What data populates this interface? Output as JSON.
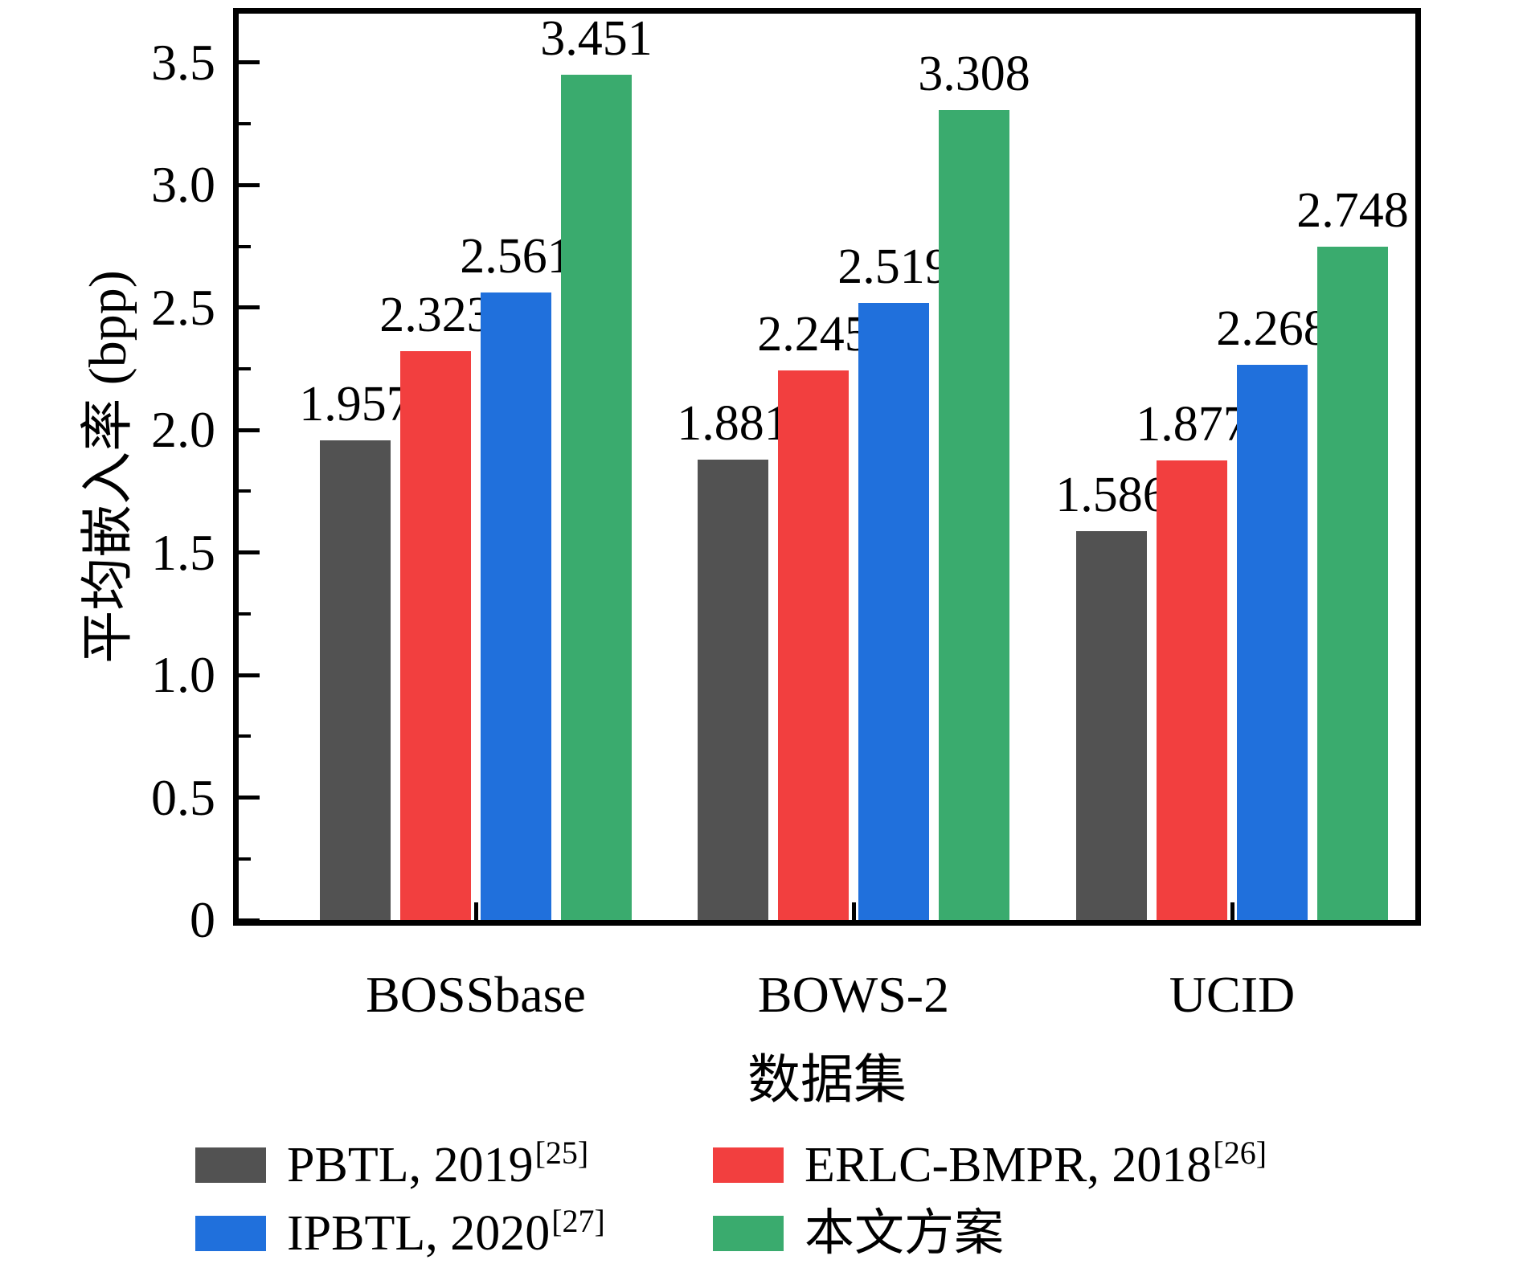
{
  "chart_data": {
    "type": "bar",
    "title": "",
    "xlabel": "数据集",
    "ylabel": "平均嵌入率 (bpp)",
    "categories": [
      "BOSSbase",
      "BOWS-2",
      "UCID"
    ],
    "series": [
      {
        "name": "PBTL, 2019",
        "ref": "[25]",
        "color": "#525252",
        "values": [
          1.957,
          1.881,
          1.586
        ]
      },
      {
        "name": "ERLC-BMPR, 2018",
        "ref": "[26]",
        "color": "#F23F3F",
        "values": [
          2.323,
          2.245,
          1.877
        ]
      },
      {
        "name": "IPBTL, 2020",
        "ref": "[27]",
        "color": "#2070DC",
        "values": [
          2.561,
          2.519,
          2.268
        ]
      },
      {
        "name": "本文方案",
        "ref": "",
        "color": "#3AAB6E",
        "values": [
          3.451,
          3.308,
          2.748
        ]
      }
    ],
    "ylim": [
      0,
      3.7
    ],
    "ytick_labels": [
      "0",
      "0.5",
      "1.0",
      "1.5",
      "2.0",
      "2.5",
      "3.0",
      "3.5"
    ],
    "minor_tick_step": 0.25,
    "grid": false,
    "value_labels": true,
    "value_label_decimals": 3,
    "legend_position": "bottom-left",
    "axis_color": "#000000",
    "background_color": "#ffffff"
  }
}
